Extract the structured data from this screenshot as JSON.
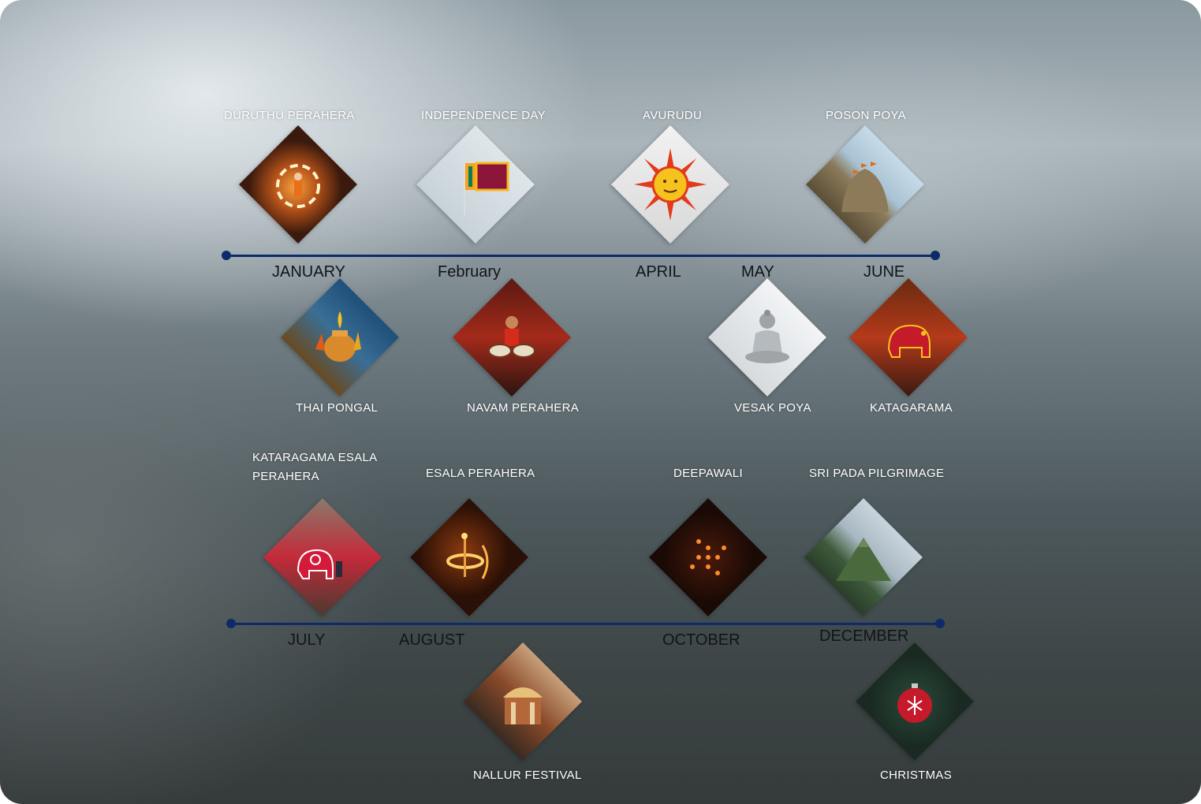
{
  "colors": {
    "axis": "#0d2a6b",
    "event_label": "#ffffff",
    "month_label": "#111418"
  },
  "timelines": [
    {
      "months": [
        "JANUARY",
        "February",
        "APRIL",
        "MAY",
        "JUNE"
      ],
      "events_above": [
        {
          "name": "DURUTHU PERAHERA",
          "icon": "fire-dancer-icon"
        },
        {
          "name": "INDEPENDENCE DAY",
          "icon": "flag-icon"
        },
        {
          "name": "AVURUDU",
          "icon": "sun-icon"
        },
        {
          "name": "POSON POYA",
          "icon": "rock-temple-icon"
        }
      ],
      "events_below": [
        {
          "name": "THAI PONGAL",
          "icon": "clay-pot-icon"
        },
        {
          "name": "NAVAM PERAHERA",
          "icon": "drummer-icon"
        },
        {
          "name": "VESAK POYA",
          "icon": "buddha-statue-icon"
        },
        {
          "name": "KATAGARAMA",
          "icon": "decorated-elephant-icon"
        }
      ]
    },
    {
      "months": [
        "JULY",
        "AUGUST",
        "OCTOBER",
        "DECEMBER"
      ],
      "events_above": [
        {
          "name": "KATARAGAMA ESALA PERAHERA",
          "icon": "elephant-procession-icon"
        },
        {
          "name": "ESALA PERAHERA",
          "icon": "fire-wheel-icon"
        },
        {
          "name": "DEEPAWALI",
          "icon": "oil-lamps-icon"
        },
        {
          "name": "SRI PADA PILGRIMAGE",
          "icon": "mountain-icon"
        }
      ],
      "events_below": [
        {
          "name": "NALLUR FESTIVAL",
          "icon": "kovil-temple-icon"
        },
        {
          "name": "CHRISTMAS",
          "icon": "christmas-bauble-icon"
        }
      ]
    }
  ]
}
